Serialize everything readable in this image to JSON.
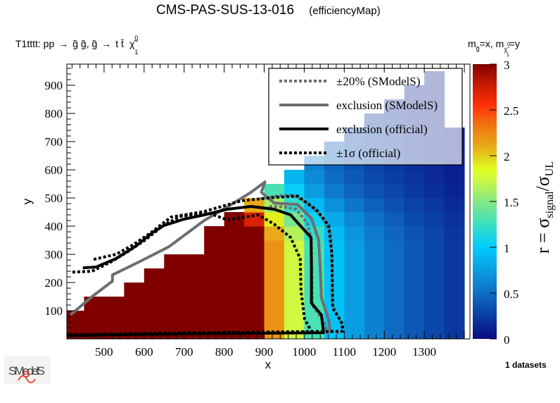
{
  "header": {
    "title": "CMS-PAS-SUS-13-016",
    "subtitle": "(efficiencyMap)",
    "process": "T1tttt: pp → g̃ g̃, g̃ → t t̄ χ̃⁰₁",
    "process_parts": {
      "lead": "T1tttt: pp",
      "arrow1": "→",
      "gg": "g̃ g̃, g̃",
      "arrow2": "→",
      "tt": "t t̄",
      "chi": "χ̃",
      "chi_sup": "0",
      "chi_sub": "1"
    },
    "mass_assignment": "m_g̃=x, m_χ̃⁰₁=y",
    "mass_parts": {
      "m1": "m",
      "m1_sub": "g̃",
      "m1_val": "=x, m",
      "m2_sub": "χ̃",
      "m2_sub_sup": "0",
      "m2_sub_sub": "1",
      "m2_val": "=y"
    },
    "datasets": "1 datasets",
    "logo_text": "SModelS"
  },
  "chart_data": {
    "type": "heatmap",
    "title": "CMS-PAS-SUS-13-016 (efficiencyMap)",
    "xlabel": "x",
    "ylabel": "y",
    "zlabel": "r = σ_signal/σ_UL",
    "zlabel_parts": {
      "r": "r = σ",
      "sub1": "signal",
      "slash": "/σ",
      "sub2": "UL"
    },
    "xlim": [
      407,
      1414
    ],
    "ylim": [
      0,
      975
    ],
    "zlim": [
      0,
      3
    ],
    "xticks": [
      500,
      600,
      700,
      800,
      900,
      1000,
      1100,
      1200,
      1300
    ],
    "yticks": [
      100,
      200,
      300,
      400,
      500,
      600,
      700,
      800,
      900
    ],
    "zticks": [
      "0",
      "0.5",
      "1",
      "1.5",
      "2",
      "2.5",
      "3"
    ],
    "grid": false,
    "legend_placement": "top-right",
    "cell": {
      "x0": 400,
      "y0": 0,
      "dx": 50,
      "dy": 50
    },
    "palette": [
      [
        0,
        "#0a0a80"
      ],
      [
        0.25,
        "#0a3ea2"
      ],
      [
        0.5,
        "#0f6ec6"
      ],
      [
        0.75,
        "#0a9ee0"
      ],
      [
        1.0,
        "#00ccff"
      ],
      [
        1.25,
        "#3adfc0"
      ],
      [
        1.5,
        "#86e884"
      ],
      [
        1.75,
        "#d0f840"
      ],
      [
        1.85,
        "#e0ff20"
      ],
      [
        2.1,
        "#e8aa18"
      ],
      [
        2.35,
        "#f07010"
      ],
      [
        2.55,
        "#ff3008"
      ],
      [
        2.8,
        "#c01800"
      ],
      [
        3.0,
        "#800000"
      ]
    ],
    "z_rows": [
      [
        5,
        5,
        5,
        5,
        5,
        5,
        5,
        5,
        5,
        3.2,
        2.2,
        1.75,
        1.3,
        0.95,
        0.75,
        0.6,
        0.48,
        0.38,
        0.3,
        0.22
      ],
      [
        5,
        5,
        5,
        5,
        5,
        5,
        5,
        5,
        5,
        3.2,
        2.2,
        1.75,
        1.3,
        0.95,
        0.75,
        0.6,
        0.48,
        0.38,
        0.3,
        0.22
      ],
      [
        null,
        5,
        5,
        5,
        5,
        5,
        5,
        5,
        5,
        3.2,
        2.2,
        1.75,
        1.3,
        0.95,
        0.75,
        0.6,
        0.48,
        0.38,
        0.3,
        0.22
      ],
      [
        null,
        null,
        null,
        5,
        5,
        5,
        5,
        5,
        5,
        3.2,
        2.2,
        1.75,
        1.3,
        0.95,
        0.75,
        0.6,
        0.48,
        0.38,
        0.3,
        0.22
      ],
      [
        null,
        null,
        null,
        null,
        5,
        5,
        5,
        5,
        5,
        3.2,
        2.2,
        1.75,
        1.3,
        0.95,
        0.75,
        0.6,
        0.48,
        0.38,
        0.3,
        0.22
      ],
      [
        null,
        null,
        null,
        null,
        null,
        5,
        5,
        5,
        5,
        3.2,
        2.2,
        1.75,
        1.3,
        0.95,
        0.75,
        0.6,
        0.48,
        0.38,
        0.3,
        0.22
      ],
      [
        null,
        null,
        null,
        null,
        null,
        null,
        null,
        5,
        5,
        3.2,
        2.2,
        1.75,
        1.3,
        0.95,
        0.75,
        0.6,
        0.48,
        0.38,
        0.3,
        0.22
      ],
      [
        null,
        null,
        null,
        null,
        null,
        null,
        null,
        5,
        5,
        3.0,
        2.1,
        1.65,
        1.22,
        0.9,
        0.71,
        0.57,
        0.46,
        0.36,
        0.29,
        0.21
      ],
      [
        null,
        null,
        null,
        null,
        null,
        null,
        null,
        null,
        3.0,
        2.7,
        1.9,
        1.45,
        1.06,
        0.81,
        0.64,
        0.51,
        0.41,
        0.32,
        0.26,
        0.19
      ],
      [
        null,
        null,
        null,
        null,
        null,
        null,
        null,
        null,
        null,
        2.1,
        1.6,
        1.22,
        0.9,
        0.68,
        0.54,
        0.43,
        0.35,
        0.27,
        0.22,
        0.16
      ],
      [
        null,
        null,
        null,
        null,
        null,
        null,
        null,
        null,
        null,
        null,
        1.3,
        1.02,
        0.75,
        0.57,
        0.45,
        0.36,
        0.29,
        0.23,
        0.18,
        0.13
      ],
      [
        null,
        null,
        null,
        null,
        null,
        null,
        null,
        null,
        null,
        null,
        null,
        0.88,
        0.65,
        0.49,
        0.39,
        0.31,
        0.25,
        0.2,
        0.16,
        0.11
      ],
      [
        null,
        null,
        null,
        null,
        null,
        null,
        null,
        null,
        null,
        null,
        null,
        null,
        0.59,
        0.45,
        0.35,
        0.28,
        0.23,
        0.18,
        0.14,
        0.1
      ],
      [
        null,
        null,
        null,
        null,
        null,
        null,
        null,
        null,
        null,
        null,
        null,
        null,
        null,
        0.41,
        0.32,
        0.26,
        0.21,
        0.16,
        0.13,
        0.09
      ],
      [
        null,
        null,
        null,
        null,
        null,
        null,
        null,
        null,
        null,
        null,
        null,
        null,
        null,
        null,
        0.3,
        0.24,
        0.19,
        0.15,
        0.12,
        0.09
      ],
      [
        null,
        null,
        null,
        null,
        null,
        null,
        null,
        null,
        null,
        null,
        null,
        null,
        null,
        null,
        null,
        0.23,
        0.18,
        0.14,
        0.11,
        null
      ],
      [
        null,
        null,
        null,
        null,
        null,
        null,
        null,
        null,
        null,
        null,
        null,
        null,
        null,
        null,
        null,
        null,
        0.17,
        0.14,
        0.11,
        null
      ],
      [
        null,
        null,
        null,
        null,
        null,
        null,
        null,
        null,
        null,
        null,
        null,
        null,
        null,
        null,
        null,
        null,
        null,
        0.13,
        0.1,
        null
      ],
      [
        null,
        null,
        null,
        null,
        null,
        null,
        null,
        null,
        null,
        null,
        null,
        null,
        null,
        null,
        null,
        null,
        null,
        null,
        0.1,
        null
      ]
    ],
    "series": [
      {
        "name": "±20% (SModelS)",
        "style": "dotted",
        "color": "#6e6e6e",
        "lines": [
          [
            [
              890,
              497
            ],
            [
              935,
              508
            ],
            [
              973,
              510
            ],
            [
              1010,
              480
            ],
            [
              1043,
              435
            ],
            [
              1066,
              377
            ],
            [
              1070,
              250
            ],
            [
              1071,
              120
            ],
            [
              1089,
              70
            ],
            [
              1096,
              27
            ],
            [
              1080,
              20
            ]
          ],
          [
            [
              913,
              470
            ],
            [
              950,
              468
            ],
            [
              980,
              460
            ],
            [
              1008,
              410
            ],
            [
              1018,
              352
            ],
            [
              1019,
              240
            ],
            [
              1020,
              120
            ],
            [
              1048,
              62
            ],
            [
              1061,
              10
            ]
          ]
        ]
      },
      {
        "name": "exclusion (SModelS)",
        "style": "solid",
        "color": "#6e6e6e",
        "lines": [
          [
            [
              416,
              85
            ],
            [
              470,
              150
            ],
            [
              521,
              205
            ],
            [
              521,
              227
            ],
            [
              590,
              275
            ],
            [
              662,
              327
            ],
            [
              750,
              420
            ],
            [
              810,
              470
            ],
            [
              867,
              520
            ],
            [
              902,
              557
            ],
            [
              893,
              520
            ],
            [
              925,
              482
            ],
            [
              983,
              477
            ],
            [
              1018,
              427
            ],
            [
              1036,
              352
            ],
            [
              1040,
              250
            ],
            [
              1043,
              145
            ],
            [
              1061,
              70
            ],
            [
              1066,
              20
            ]
          ]
        ]
      },
      {
        "name": "exclusion (official)",
        "style": "solid",
        "color": "#000000",
        "lines": [
          [
            [
              447,
              252
            ],
            [
              480,
              255
            ],
            [
              530,
              285
            ],
            [
              580,
              330
            ],
            [
              621,
              377
            ],
            [
              649,
              402
            ],
            [
              700,
              425
            ],
            [
              750,
              440
            ],
            [
              808,
              460
            ],
            [
              867,
              470
            ],
            [
              925,
              460
            ],
            [
              966,
              440
            ],
            [
              990,
              402
            ],
            [
              1017,
              360
            ],
            [
              1018,
              250
            ],
            [
              1018,
              127
            ],
            [
              1043,
              85
            ],
            [
              1048,
              27
            ],
            [
              1048,
              22
            ],
            [
              700,
              18
            ],
            [
              407,
              12
            ]
          ]
        ]
      },
      {
        "name": "±1σ (official)",
        "style": "dotted",
        "color": "#000000",
        "lines": [
          [
            [
              474,
              282
            ],
            [
              530,
              300
            ],
            [
              574,
              335
            ],
            [
              620,
              380
            ],
            [
              667,
              432
            ],
            [
              750,
              452
            ],
            [
              843,
              490
            ],
            [
              925,
              502
            ],
            [
              983,
              507
            ],
            [
              1031,
              457
            ],
            [
              1061,
              402
            ],
            [
              1069,
              302
            ],
            [
              1070,
              200
            ],
            [
              1071,
              110
            ],
            [
              1096,
              52
            ],
            [
              1096,
              27
            ],
            [
              700,
              22
            ],
            [
              407,
              15
            ]
          ],
          [
            [
              421,
              237
            ],
            [
              470,
              240
            ],
            [
              516,
              272
            ],
            [
              560,
              310
            ],
            [
              604,
              352
            ],
            [
              650,
              405
            ],
            [
              692,
              435
            ],
            [
              761,
              447
            ],
            [
              808,
              422
            ],
            [
              885,
              440
            ],
            [
              925,
              407
            ],
            [
              966,
              360
            ],
            [
              990,
              285
            ],
            [
              992,
              170
            ],
            [
              1001,
              70
            ],
            [
              1018,
              27
            ]
          ]
        ]
      }
    ]
  }
}
